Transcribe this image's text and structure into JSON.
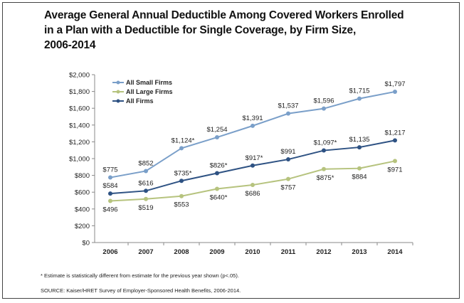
{
  "chart_data": {
    "type": "line",
    "title_lines": [
      "Average General Annual Deductible Among Covered Workers Enrolled",
      "in a Plan with a Deductible for Single Coverage, by Firm Size,",
      "2006-2014"
    ],
    "xlabel": "",
    "ylabel": "",
    "x": [
      "2006",
      "2007",
      "2008",
      "2009",
      "2010",
      "2011",
      "2012",
      "2013",
      "2014"
    ],
    "ylim": [
      0,
      2000
    ],
    "yticks": [
      0,
      200,
      400,
      600,
      800,
      1000,
      1200,
      1400,
      1600,
      1800,
      2000
    ],
    "ytick_labels": [
      "$0",
      "$200",
      "$400",
      "$600",
      "$800",
      "$1,000",
      "$1,200",
      "$1,400",
      "$1,600",
      "$1,800",
      "$2,000"
    ],
    "grid": false,
    "legend_position": "top-left",
    "series": [
      {
        "name": "All Small Firms",
        "color": "#7a9fc9",
        "values": [
          775,
          852,
          1124,
          1254,
          1391,
          1537,
          1596,
          1715,
          1797
        ],
        "labels": [
          "$775",
          "$852",
          "$1,124*",
          "$1,254",
          "$1,391",
          "$1,537",
          "$1,596",
          "$1,715",
          "$1,797"
        ],
        "label_position": "above"
      },
      {
        "name": "All Large Firms",
        "color": "#b6c37e",
        "values": [
          496,
          519,
          553,
          640,
          686,
          757,
          875,
          884,
          971
        ],
        "labels": [
          "$496",
          "$519",
          "$553",
          "$640*",
          "$686",
          "$757",
          "$875*",
          "$884",
          "$971"
        ],
        "label_position": "below"
      },
      {
        "name": "All Firms",
        "color": "#2e5283",
        "values": [
          584,
          616,
          735,
          826,
          917,
          991,
          1097,
          1135,
          1217
        ],
        "labels": [
          "$584",
          "$616",
          "$735*",
          "$826*",
          "$917*",
          "$991",
          "$1,097*",
          "$1,135",
          "$1,217"
        ],
        "label_position": "above"
      }
    ]
  },
  "notes": {
    "footnote": "* Estimate is statistically different from estimate for the previous year shown (p<.05).",
    "source": "SOURCE: Kaiser/HRET Survey of Employer-Sponsored Health Benefits, 2006-2014."
  }
}
